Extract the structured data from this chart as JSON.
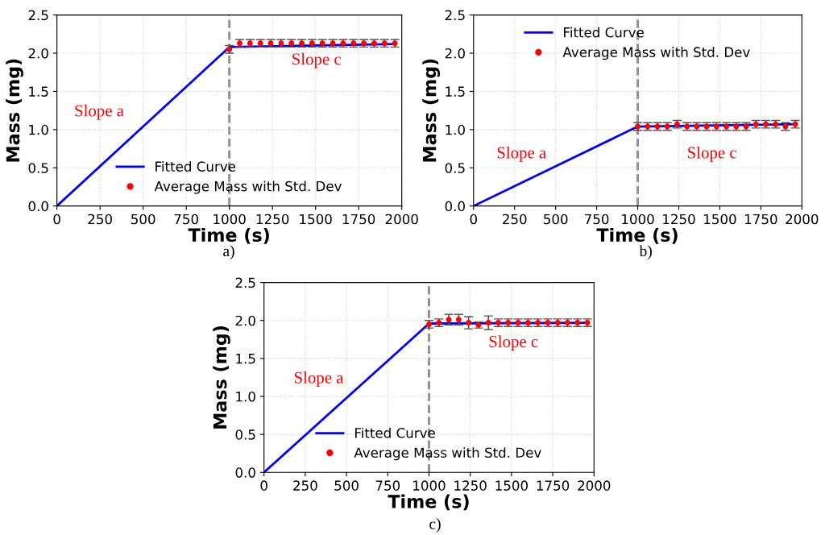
{
  "chart_data": [
    {
      "type": "line",
      "xlabel": "Time (s)",
      "ylabel": "Mass (mg)",
      "xlim": [
        0,
        2000
      ],
      "ylim": [
        0,
        2.5
      ],
      "xticks": [
        0,
        250,
        500,
        750,
        1000,
        1250,
        1500,
        1750,
        2000
      ],
      "yticks": [
        {
          "value": 0,
          "label": "0.0"
        },
        {
          "value": 0.5,
          "label": "0.5"
        },
        {
          "value": 1,
          "label": "1.0"
        },
        {
          "value": 1.5,
          "label": "1.5"
        },
        {
          "value": 2,
          "label": "2.0"
        },
        {
          "value": 2.5,
          "label": "2.5"
        }
      ],
      "grid": true,
      "legend": "bottom",
      "series": [
        {
          "name": "Fitted Curve",
          "color": "#0000ff",
          "x": [
            0,
            1000,
            1960
          ],
          "values": [
            0,
            2.08,
            2.12
          ]
        },
        {
          "name": "Average Mass with Std. Dev",
          "type": "scatter",
          "color": "#ff0000",
          "x": [
            1000,
            1060,
            1120,
            1180,
            1240,
            1300,
            1360,
            1420,
            1480,
            1540,
            1600,
            1660,
            1720,
            1780,
            1840,
            1900,
            1960
          ],
          "values": [
            2.05,
            2.13,
            2.13,
            2.13,
            2.13,
            2.13,
            2.13,
            2.13,
            2.13,
            2.13,
            2.13,
            2.13,
            2.13,
            2.13,
            2.13,
            2.13,
            2.13
          ],
          "errors": [
            0.05,
            0.05,
            0.05,
            0.05,
            0.05,
            0.05,
            0.05,
            0.05,
            0.05,
            0.05,
            0.05,
            0.05,
            0.05,
            0.05,
            0.05,
            0.05,
            0.05
          ]
        }
      ],
      "ref_lines": [
        {
          "axis": "x",
          "value": 1000,
          "color": "#808080",
          "line_style": "dashed"
        }
      ],
      "annotations": [
        "Slope a",
        "Slope c",
        "a)"
      ]
    },
    {
      "type": "line",
      "xlabel": "Time (s)",
      "ylabel": "Mass (mg)",
      "xlim": [
        0,
        2000
      ],
      "ylim": [
        0,
        2.5
      ],
      "xticks": [
        0,
        250,
        500,
        750,
        1000,
        1250,
        1500,
        1750,
        2000
      ],
      "yticks": [
        {
          "value": 0,
          "label": "0.0"
        },
        {
          "value": 0.5,
          "label": "0.5"
        },
        {
          "value": 1,
          "label": "1.0"
        },
        {
          "value": 1.5,
          "label": "1.5"
        },
        {
          "value": 2,
          "label": "2.0"
        },
        {
          "value": 2.5,
          "label": "2.5"
        }
      ],
      "grid": true,
      "legend": "top",
      "series": [
        {
          "name": "Fitted Curve",
          "color": "#0000ff",
          "x": [
            0,
            1000,
            1960
          ],
          "values": [
            0,
            1.04,
            1.07
          ]
        },
        {
          "name": "Average Mass with Std. Dev",
          "type": "scatter",
          "color": "#ff0000",
          "x": [
            1000,
            1060,
            1120,
            1180,
            1240,
            1300,
            1360,
            1420,
            1480,
            1540,
            1600,
            1660,
            1720,
            1780,
            1840,
            1900,
            1960
          ],
          "values": [
            1.04,
            1.04,
            1.04,
            1.04,
            1.07,
            1.04,
            1.04,
            1.04,
            1.04,
            1.04,
            1.04,
            1.04,
            1.07,
            1.07,
            1.07,
            1.04,
            1.07
          ],
          "errors": [
            0.05,
            0.05,
            0.05,
            0.05,
            0.05,
            0.05,
            0.05,
            0.05,
            0.05,
            0.05,
            0.05,
            0.05,
            0.05,
            0.05,
            0.05,
            0.05,
            0.05
          ]
        }
      ],
      "ref_lines": [
        {
          "axis": "x",
          "value": 1000,
          "color": "#808080",
          "line_style": "dashed"
        }
      ],
      "annotations": [
        "Slope a",
        "Slope c",
        "b)"
      ]
    },
    {
      "type": "line",
      "xlabel": "Time (s)",
      "ylabel": "Mass (mg)",
      "xlim": [
        0,
        2000
      ],
      "ylim": [
        0,
        2.5
      ],
      "xticks": [
        0,
        250,
        500,
        750,
        1000,
        1250,
        1500,
        1750,
        2000
      ],
      "yticks": [
        {
          "value": 0,
          "label": "0.0"
        },
        {
          "value": 0.5,
          "label": "0.5"
        },
        {
          "value": 1,
          "label": "1.0"
        },
        {
          "value": 1.5,
          "label": "1.5"
        },
        {
          "value": 2,
          "label": "2.0"
        },
        {
          "value": 2.5,
          "label": "2.5"
        }
      ],
      "grid": true,
      "legend": "bottom",
      "series": [
        {
          "name": "Fitted Curve",
          "color": "#0000ff",
          "x": [
            0,
            1000,
            1960
          ],
          "values": [
            0,
            1.96,
            1.97
          ]
        },
        {
          "name": "Average Mass with Std. Dev",
          "type": "scatter",
          "color": "#ff0000",
          "x": [
            1000,
            1060,
            1120,
            1180,
            1240,
            1300,
            1360,
            1420,
            1480,
            1540,
            1600,
            1660,
            1720,
            1780,
            1840,
            1900,
            1960
          ],
          "values": [
            1.95,
            1.97,
            2.01,
            2.01,
            1.97,
            1.94,
            1.97,
            1.97,
            1.97,
            1.97,
            1.97,
            1.97,
            1.97,
            1.97,
            1.97,
            1.97,
            1.97
          ],
          "errors": [
            0.05,
            0.05,
            0.07,
            0.07,
            0.08,
            0.04,
            0.09,
            0.05,
            0.05,
            0.05,
            0.05,
            0.05,
            0.05,
            0.05,
            0.05,
            0.05,
            0.05
          ]
        }
      ],
      "ref_lines": [
        {
          "axis": "x",
          "value": 1000,
          "color": "#808080",
          "line_style": "dashed"
        }
      ],
      "annotations": [
        "Slope a",
        "Slope c",
        "c)"
      ]
    }
  ]
}
